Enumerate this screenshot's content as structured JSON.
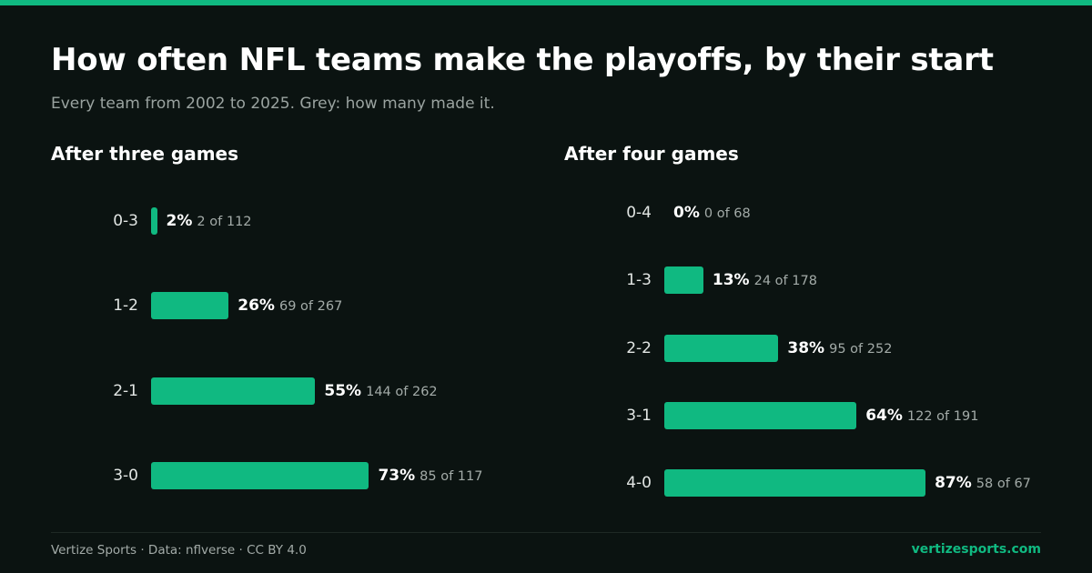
{
  "header": {
    "title": "How often NFL teams make the playoffs, by their start",
    "subtitle": "Every team from 2002 to 2025. Grey: how many made it."
  },
  "colors": {
    "background": "#0b1311",
    "accent": "#10b981",
    "muted_text": "#a3aba8"
  },
  "chart_data": [
    {
      "type": "bar",
      "orientation": "horizontal",
      "title": "After three games",
      "categories": [
        "0-3",
        "1-2",
        "2-1",
        "3-0"
      ],
      "values": [
        2,
        26,
        55,
        73
      ],
      "value_labels": [
        "2%",
        "26%",
        "55%",
        "73%"
      ],
      "count_labels": [
        "2 of 112",
        "69 of 267",
        "144 of 262",
        "85 of 117"
      ],
      "xlim": [
        0,
        100
      ],
      "grid": false
    },
    {
      "type": "bar",
      "orientation": "horizontal",
      "title": "After four games",
      "categories": [
        "0-4",
        "1-3",
        "2-2",
        "3-1",
        "4-0"
      ],
      "values": [
        0,
        13,
        38,
        64,
        87
      ],
      "value_labels": [
        "0%",
        "13%",
        "38%",
        "64%",
        "87%"
      ],
      "count_labels": [
        "0 of 68",
        "24 of 178",
        "95 of 252",
        "122 of 191",
        "58 of 67"
      ],
      "xlim": [
        0,
        100
      ],
      "grid": false
    }
  ],
  "footer": {
    "source": "Vertize Sports · Data: nflverse · CC BY 4.0",
    "site": "vertizesports.com"
  }
}
